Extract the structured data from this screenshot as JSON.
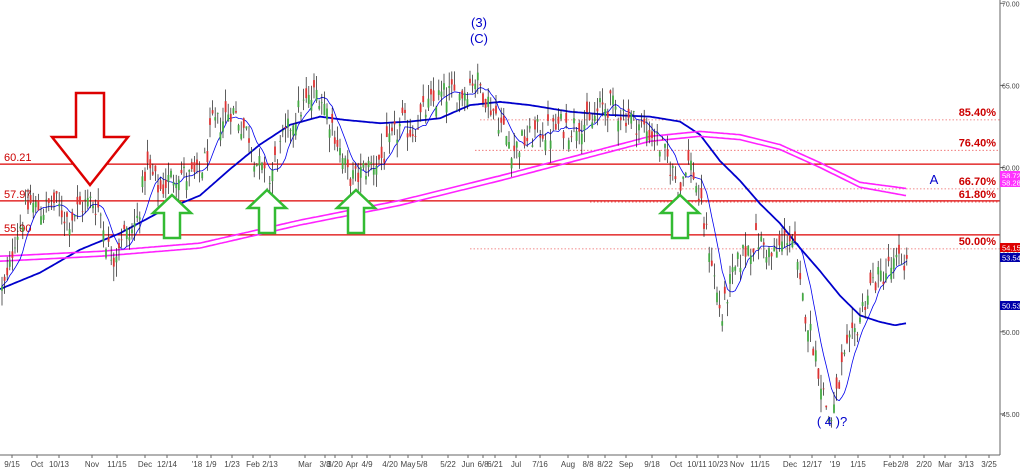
{
  "chart_data": {
    "type": "line",
    "chart_kind": "candlestick with moving averages, horizontal levels and Fibonacci retracements",
    "title": "",
    "xlabel": "",
    "ylabel": "",
    "ylim": [
      42.5,
      70.2
    ],
    "y_ticks": [
      "45.00",
      "50.00",
      "55.00",
      "60.00",
      "65.00",
      "70.00"
    ],
    "x_ticks": [
      "9/15",
      "Oct",
      "10/13",
      "Nov",
      "11/15",
      "Dec",
      "12/14",
      "'18",
      "1/9",
      "1/23",
      "Feb",
      "2/13",
      "Mar",
      "3/8",
      "3/20",
      "Apr",
      "4/9",
      "4/20",
      "May",
      "5/8",
      "5/22",
      "Jun",
      "6/8",
      "6/21",
      "Jul",
      "7/16",
      "Aug",
      "8/8",
      "8/22",
      "Sep",
      "9/18",
      "Oct",
      "10/11",
      "10/23",
      "Nov",
      "11/15",
      "Dec",
      "12/17",
      "'19",
      "1/15",
      "Feb",
      "2/8",
      "2/20",
      "Mar",
      "3/13",
      "3/25"
    ],
    "grid": false,
    "horizontal_levels": [
      {
        "label": "60.21",
        "value": 60.21
      },
      {
        "label": "57.97",
        "value": 57.97
      },
      {
        "label": "55.90",
        "value": 55.9
      }
    ],
    "fib_levels": [
      {
        "label": "85.40%",
        "value": 62.9
      },
      {
        "label": "76.40%",
        "value": 61.05
      },
      {
        "label": "66.70%",
        "value": 58.7
      },
      {
        "label": "61.80%",
        "value": 57.9
      },
      {
        "label": "50.00%",
        "value": 55.05
      }
    ],
    "price_tags": [
      {
        "label": "58.72",
        "value": 58.72,
        "color": "#ff33ff"
      },
      {
        "label": "58.28",
        "value": 58.28,
        "color": "#ff33ff"
      },
      {
        "label": "54.15",
        "value": 54.15,
        "color": "#dd0000"
      },
      {
        "label": "53.54",
        "value": 53.54,
        "color": "#0000aa"
      },
      {
        "label": "50.53",
        "value": 50.53,
        "color": "#0000aa"
      }
    ],
    "wave_labels": [
      {
        "text": "(3)",
        "line2": "(C)"
      },
      {
        "text": "A"
      },
      {
        "text": "( 4 )?"
      }
    ],
    "price_keypoints": [
      [
        0,
        52.3
      ],
      [
        8,
        53.2
      ],
      [
        14,
        55.6
      ],
      [
        22,
        56.8
      ],
      [
        30,
        57.8
      ],
      [
        42,
        57.4
      ],
      [
        55,
        57.9
      ],
      [
        68,
        56.8
      ],
      [
        80,
        57.6
      ],
      [
        92,
        58.0
      ],
      [
        100,
        57.4
      ],
      [
        108,
        55.1
      ],
      [
        114,
        54.6
      ],
      [
        122,
        56.0
      ],
      [
        130,
        55.8
      ],
      [
        138,
        57.0
      ],
      [
        146,
        60.1
      ],
      [
        152,
        59.5
      ],
      [
        160,
        58.6
      ],
      [
        168,
        59.2
      ],
      [
        178,
        59.8
      ],
      [
        188,
        59.4
      ],
      [
        198,
        59.5
      ],
      [
        206,
        60.5
      ],
      [
        212,
        62.5
      ],
      [
        222,
        62.8
      ],
      [
        230,
        63.6
      ],
      [
        236,
        63.2
      ],
      [
        242,
        62.6
      ],
      [
        250,
        61.9
      ],
      [
        256,
        60.4
      ],
      [
        262,
        59.8
      ],
      [
        268,
        58.6
      ],
      [
        274,
        60.2
      ],
      [
        282,
        61.4
      ],
      [
        292,
        62.8
      ],
      [
        300,
        63.6
      ],
      [
        310,
        64.1
      ],
      [
        318,
        64.7
      ],
      [
        326,
        63.6
      ],
      [
        334,
        62.3
      ],
      [
        342,
        60.6
      ],
      [
        348,
        59.5
      ],
      [
        356,
        59.3
      ],
      [
        364,
        59.9
      ],
      [
        372,
        60.2
      ],
      [
        382,
        60.6
      ],
      [
        392,
        61.6
      ],
      [
        402,
        62.7
      ],
      [
        412,
        62.2
      ],
      [
        422,
        63.2
      ],
      [
        432,
        63.9
      ],
      [
        442,
        64.4
      ],
      [
        450,
        64.5
      ],
      [
        458,
        64.3
      ],
      [
        466,
        64.8
      ],
      [
        474,
        65.5
      ],
      [
        482,
        64.8
      ],
      [
        490,
        63.8
      ],
      [
        498,
        63.1
      ],
      [
        506,
        61.9
      ],
      [
        514,
        61.1
      ],
      [
        522,
        61.6
      ],
      [
        530,
        61.8
      ],
      [
        540,
        62.3
      ],
      [
        550,
        62.1
      ],
      [
        560,
        62.6
      ],
      [
        570,
        62.4
      ],
      [
        580,
        62.9
      ],
      [
        590,
        62.5
      ],
      [
        600,
        63.6
      ],
      [
        610,
        63.8
      ],
      [
        620,
        63.4
      ],
      [
        630,
        63.1
      ],
      [
        640,
        62.6
      ],
      [
        648,
        62.2
      ],
      [
        656,
        61.8
      ],
      [
        662,
        61.1
      ],
      [
        668,
        60.4
      ],
      [
        674,
        59.6
      ],
      [
        680,
        58.6
      ],
      [
        686,
        60.4
      ],
      [
        692,
        60.1
      ],
      [
        698,
        58.4
      ],
      [
        704,
        56.6
      ],
      [
        710,
        55.1
      ],
      [
        716,
        52.6
      ],
      [
        722,
        50.8
      ],
      [
        728,
        52.5
      ],
      [
        734,
        53.5
      ],
      [
        742,
        54.7
      ],
      [
        750,
        55.3
      ],
      [
        758,
        55.6
      ],
      [
        766,
        55.1
      ],
      [
        772,
        54.5
      ],
      [
        780,
        55.1
      ],
      [
        788,
        56.0
      ],
      [
        794,
        55.4
      ],
      [
        800,
        52.6
      ],
      [
        808,
        50.6
      ],
      [
        816,
        48.6
      ],
      [
        824,
        46.1
      ],
      [
        830,
        44.5
      ],
      [
        836,
        45.8
      ],
      [
        842,
        47.8
      ],
      [
        848,
        48.8
      ],
      [
        856,
        50.1
      ],
      [
        864,
        51.8
      ],
      [
        872,
        53.0
      ],
      [
        880,
        53.3
      ],
      [
        888,
        53.8
      ],
      [
        896,
        54.1
      ],
      [
        903,
        54.4
      ],
      [
        907,
        54.15
      ]
    ],
    "series": [
      {
        "key": "price",
        "color": "#1a1a1a"
      },
      {
        "key": "short_ma",
        "color": "#0000ee"
      },
      {
        "key": "ma_blue",
        "color": "#0000cc",
        "values": [
          [
            0,
            52.6
          ],
          [
            40,
            53.6
          ],
          [
            80,
            55.0
          ],
          [
            120,
            56.0
          ],
          [
            160,
            57.3
          ],
          [
            200,
            58.3
          ],
          [
            230,
            59.9
          ],
          [
            260,
            61.4
          ],
          [
            290,
            62.6
          ],
          [
            320,
            63.1
          ],
          [
            345,
            62.9
          ],
          [
            380,
            62.7
          ],
          [
            410,
            62.8
          ],
          [
            440,
            63.0
          ],
          [
            470,
            63.8
          ],
          [
            500,
            64.0
          ],
          [
            530,
            63.8
          ],
          [
            570,
            63.4
          ],
          [
            610,
            63.2
          ],
          [
            650,
            63.1
          ],
          [
            680,
            62.8
          ],
          [
            700,
            62.0
          ],
          [
            720,
            60.4
          ],
          [
            740,
            59.2
          ],
          [
            760,
            57.8
          ],
          [
            780,
            56.6
          ],
          [
            800,
            55.1
          ],
          [
            820,
            53.7
          ],
          [
            840,
            52.2
          ],
          [
            860,
            51.0
          ],
          [
            880,
            50.6
          ],
          [
            895,
            50.4
          ],
          [
            907,
            50.53
          ]
        ]
      },
      {
        "key": "ma_magenta_1",
        "color": "#ff22ff",
        "values": [
          [
            0,
            54.6
          ],
          [
            100,
            54.9
          ],
          [
            200,
            55.4
          ],
          [
            300,
            56.8
          ],
          [
            400,
            58.0
          ],
          [
            500,
            59.5
          ],
          [
            600,
            61.1
          ],
          [
            650,
            61.9
          ],
          [
            700,
            62.2
          ],
          [
            740,
            62.0
          ],
          [
            780,
            61.4
          ],
          [
            820,
            60.3
          ],
          [
            860,
            59.1
          ],
          [
            907,
            58.72
          ]
        ]
      },
      {
        "key": "ma_magenta_2",
        "color": "#ff22ff",
        "values": [
          [
            0,
            54.3
          ],
          [
            100,
            54.6
          ],
          [
            200,
            55.1
          ],
          [
            300,
            56.5
          ],
          [
            400,
            57.7
          ],
          [
            500,
            59.2
          ],
          [
            600,
            60.8
          ],
          [
            650,
            61.6
          ],
          [
            700,
            61.9
          ],
          [
            740,
            61.7
          ],
          [
            780,
            61.1
          ],
          [
            820,
            60.0
          ],
          [
            860,
            58.8
          ],
          [
            907,
            58.28
          ]
        ]
      }
    ],
    "annotations": [
      {
        "type": "arrow-down",
        "color": "#dd0000"
      },
      {
        "type": "arrow-up",
        "color": "#33bb33"
      },
      {
        "type": "arrow-up",
        "color": "#33bb33"
      },
      {
        "type": "arrow-up",
        "color": "#33bb33"
      },
      {
        "type": "arrow-up",
        "color": "#33bb33"
      }
    ]
  },
  "colors": {
    "level_line": "#dd0000",
    "level_label": "#cc0000",
    "fib_dotted": "#ee6666",
    "wave_label": "#0000cc",
    "axis": "#666666",
    "tick_label": "#444444"
  }
}
